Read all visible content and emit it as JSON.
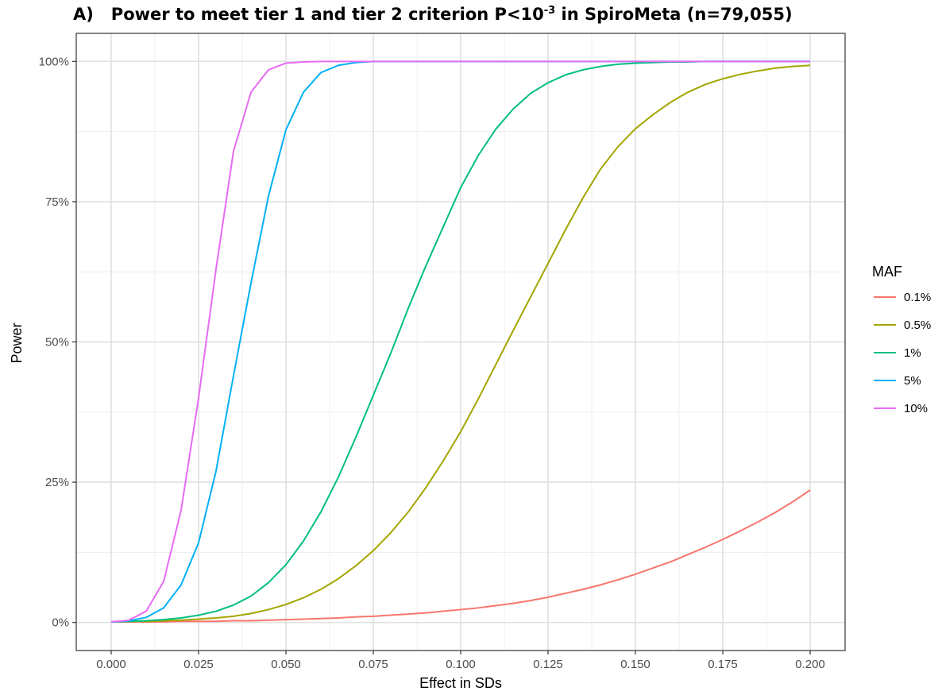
{
  "title": {
    "prefix": "A)",
    "main": "Power to meet tier 1 and tier 2 criterion P<10",
    "superscript": "-3",
    "suffix": " in SpiroMeta (n=79,055)"
  },
  "chart_data": {
    "type": "line",
    "xlabel": "Effect in SDs",
    "ylabel": "Power",
    "xlim": [
      -0.01,
      0.21
    ],
    "ylim": [
      -0.05,
      1.05
    ],
    "x_ticks": [
      0.0,
      0.025,
      0.05,
      0.075,
      0.1,
      0.125,
      0.15,
      0.175,
      0.2
    ],
    "x_tick_labels": [
      "0.000",
      "0.025",
      "0.050",
      "0.075",
      "0.100",
      "0.125",
      "0.150",
      "0.175",
      "0.200"
    ],
    "y_ticks": [
      0,
      0.25,
      0.5,
      0.75,
      1.0
    ],
    "y_tick_labels": [
      "0%",
      "25%",
      "50%",
      "75%",
      "100%"
    ],
    "grid": true,
    "legend": {
      "title": "MAF",
      "placement": "right"
    },
    "x": [
      0.0,
      0.005,
      0.01,
      0.015,
      0.02,
      0.025,
      0.03,
      0.035,
      0.04,
      0.045,
      0.05,
      0.055,
      0.06,
      0.065,
      0.07,
      0.075,
      0.08,
      0.085,
      0.09,
      0.095,
      0.1,
      0.105,
      0.11,
      0.115,
      0.12,
      0.125,
      0.13,
      0.135,
      0.14,
      0.145,
      0.15,
      0.155,
      0.16,
      0.165,
      0.17,
      0.175,
      0.18,
      0.185,
      0.19,
      0.195,
      0.2
    ],
    "series": [
      {
        "name": "0.1%",
        "color": "#F8766D",
        "values": [
          0.001,
          0.001,
          0.001,
          0.001,
          0.002,
          0.002,
          0.002,
          0.003,
          0.003,
          0.004,
          0.005,
          0.006,
          0.007,
          0.008,
          0.01,
          0.011,
          0.013,
          0.015,
          0.017,
          0.02,
          0.023,
          0.026,
          0.03,
          0.034,
          0.039,
          0.045,
          0.052,
          0.059,
          0.067,
          0.076,
          0.086,
          0.097,
          0.108,
          0.121,
          0.134,
          0.148,
          0.163,
          0.179,
          0.196,
          0.215,
          0.236
        ]
      },
      {
        "name": "0.5%",
        "color": "#A3A500",
        "values": [
          0.001,
          0.002,
          0.002,
          0.003,
          0.004,
          0.006,
          0.008,
          0.011,
          0.016,
          0.023,
          0.032,
          0.044,
          0.059,
          0.078,
          0.101,
          0.128,
          0.16,
          0.197,
          0.24,
          0.288,
          0.34,
          0.398,
          0.459,
          0.52,
          0.58,
          0.64,
          0.7,
          0.757,
          0.808,
          0.848,
          0.88,
          0.905,
          0.927,
          0.945,
          0.959,
          0.969,
          0.977,
          0.983,
          0.988,
          0.991,
          0.993
        ]
      },
      {
        "name": "1%",
        "color": "#00BF7D",
        "values": [
          0.001,
          0.002,
          0.003,
          0.005,
          0.008,
          0.013,
          0.02,
          0.031,
          0.047,
          0.071,
          0.103,
          0.145,
          0.197,
          0.259,
          0.33,
          0.405,
          0.48,
          0.56,
          0.635,
          0.705,
          0.775,
          0.832,
          0.879,
          0.915,
          0.943,
          0.962,
          0.976,
          0.985,
          0.991,
          0.995,
          0.997,
          0.998,
          0.999,
          0.999,
          1.0,
          1.0,
          1.0,
          1.0,
          1.0,
          1.0,
          1.0
        ]
      },
      {
        "name": "5%",
        "color": "#00B0F6",
        "values": [
          0.001,
          0.003,
          0.009,
          0.026,
          0.067,
          0.142,
          0.27,
          0.44,
          0.605,
          0.76,
          0.878,
          0.945,
          0.98,
          0.993,
          0.998,
          1.0,
          1.0,
          1.0,
          1.0,
          1.0,
          1.0,
          1.0,
          1.0,
          1.0,
          1.0,
          1.0,
          1.0,
          1.0,
          1.0,
          1.0,
          1.0,
          1.0,
          1.0,
          1.0,
          1.0,
          1.0,
          1.0,
          1.0,
          1.0,
          1.0,
          1.0
        ]
      },
      {
        "name": "10%",
        "color": "#E76BF3",
        "values": [
          0.001,
          0.004,
          0.02,
          0.073,
          0.2,
          0.4,
          0.63,
          0.84,
          0.945,
          0.985,
          0.997,
          0.999,
          1.0,
          1.0,
          1.0,
          1.0,
          1.0,
          1.0,
          1.0,
          1.0,
          1.0,
          1.0,
          1.0,
          1.0,
          1.0,
          1.0,
          1.0,
          1.0,
          1.0,
          1.0,
          1.0,
          1.0,
          1.0,
          1.0,
          1.0,
          1.0,
          1.0,
          1.0,
          1.0,
          1.0,
          1.0
        ]
      }
    ]
  }
}
